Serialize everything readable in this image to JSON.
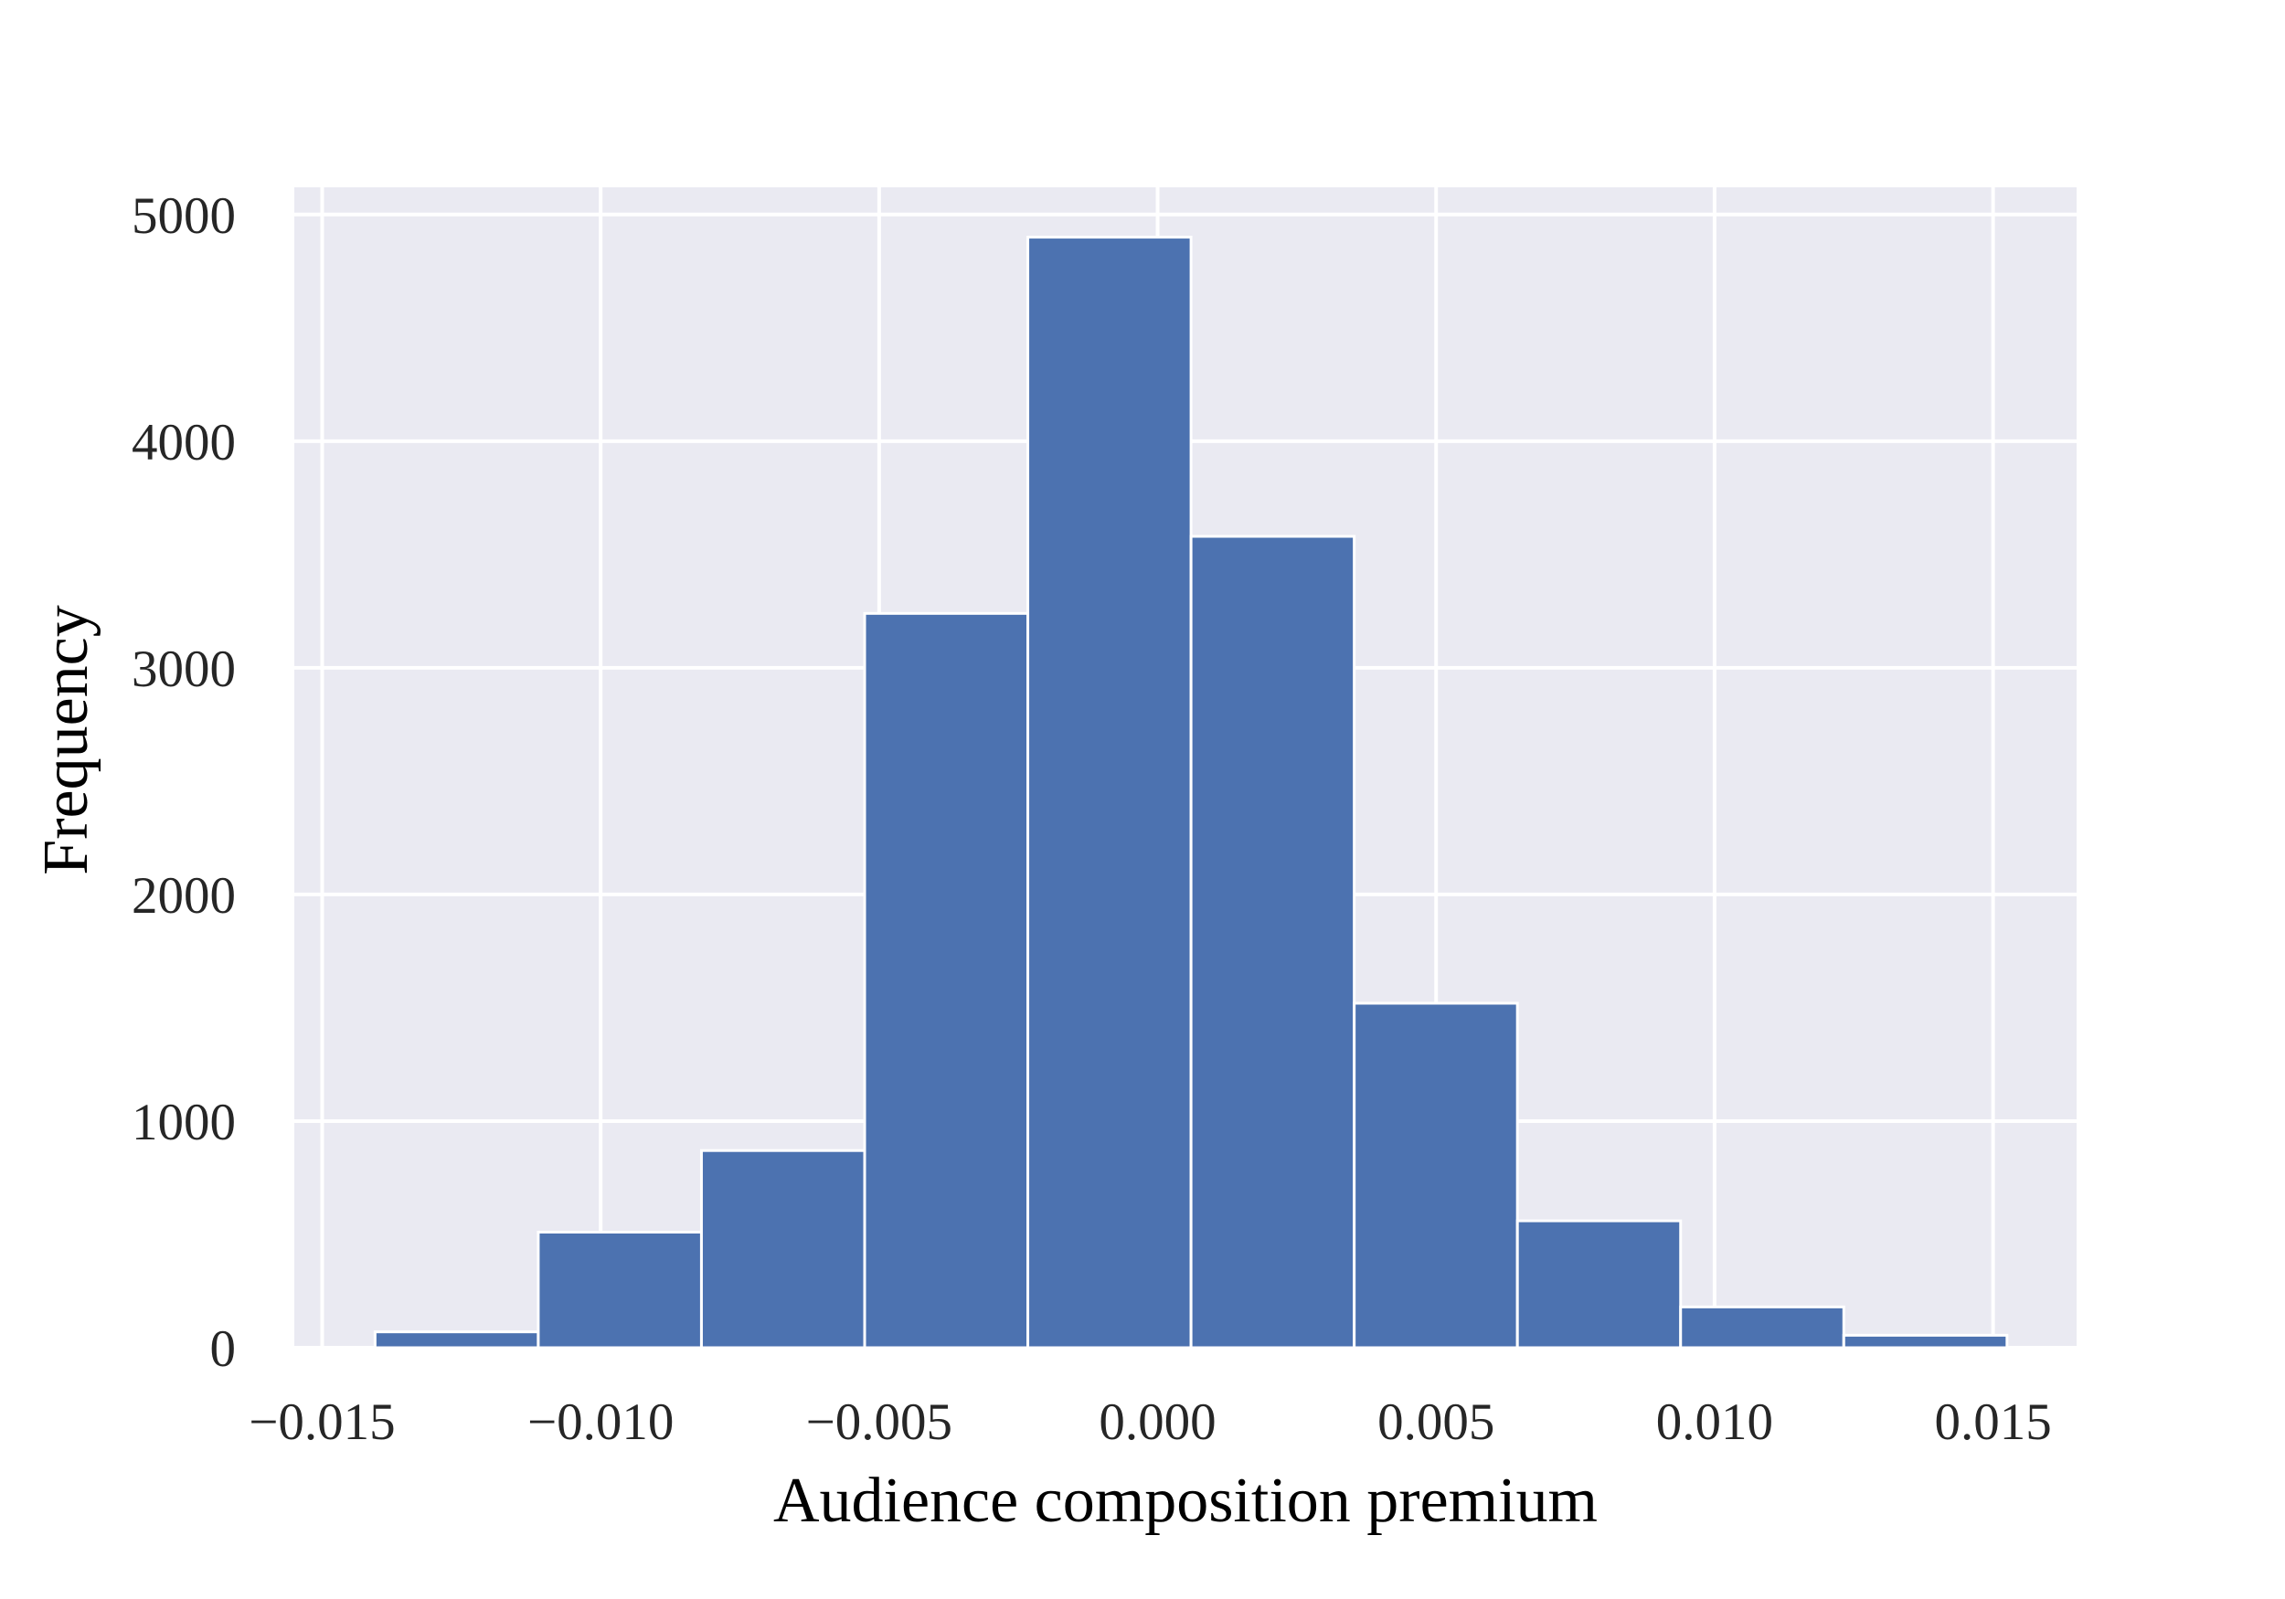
{
  "chart_data": {
    "type": "bar",
    "xlabel": "Audience composition premium",
    "ylabel": "Frequency",
    "xlim": [
      -0.0155,
      0.0165
    ],
    "ylim": [
      0,
      5120
    ],
    "xticks": [
      -0.015,
      -0.01,
      -0.005,
      0.0,
      0.005,
      0.01,
      0.015
    ],
    "xtick_labels": [
      "−0.015",
      "−0.010",
      "−0.005",
      "0.000",
      "0.005",
      "0.010",
      "0.015"
    ],
    "yticks": [
      0,
      1000,
      2000,
      3000,
      4000,
      5000
    ],
    "ytick_labels": [
      "0",
      "1000",
      "2000",
      "3000",
      "4000",
      "5000"
    ],
    "bin_edges": [
      -0.01405,
      -0.01112,
      -0.00819,
      -0.00526,
      -0.00233,
      0.0006,
      0.00353,
      0.00646,
      0.00939,
      0.01232,
      0.01525
    ],
    "values": [
      70,
      510,
      870,
      3240,
      4900,
      3580,
      1520,
      560,
      180,
      55
    ],
    "grid": true,
    "colors": {
      "bar": "#4c72b0",
      "background": "#eaeaf2",
      "grid": "#ffffff"
    }
  }
}
